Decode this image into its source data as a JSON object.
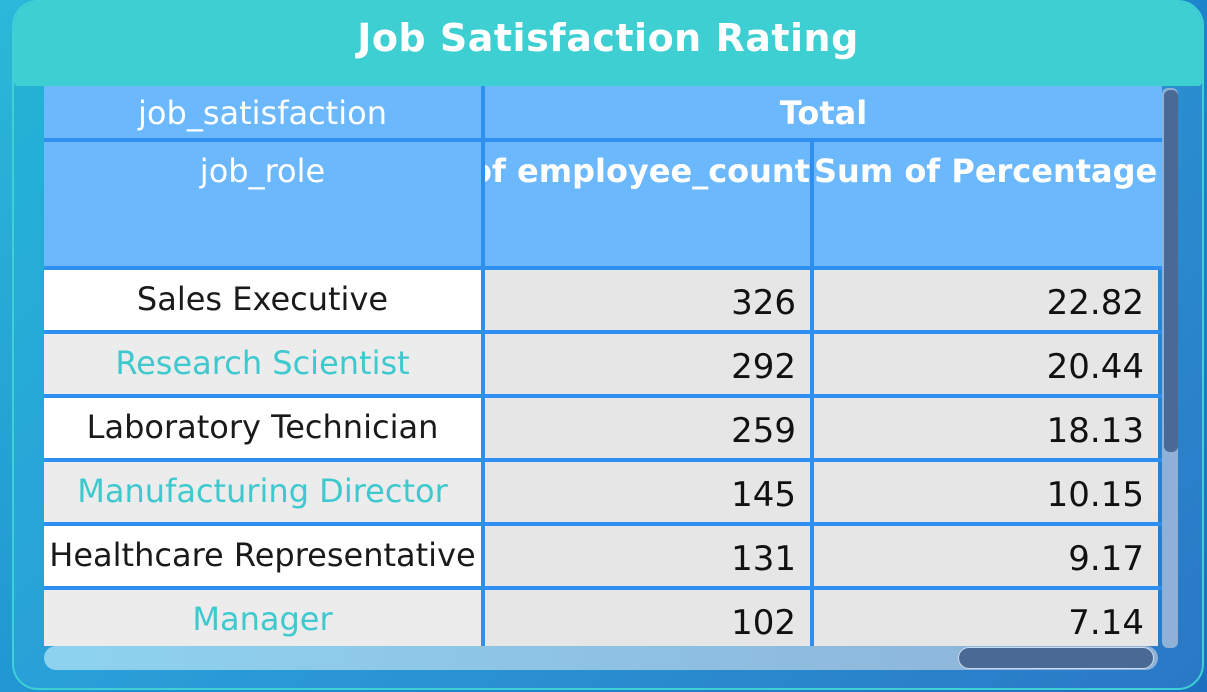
{
  "visual": {
    "title": "Job Satisfaction Rating"
  },
  "table": {
    "header_row1": {
      "row_field": "job_satisfaction",
      "column_group": "Total"
    },
    "header_row2": {
      "row_field": "job_role",
      "col1": "of employee_count",
      "col2": "Sum of Percentage"
    },
    "rows": [
      {
        "job_role": "Sales Executive",
        "employee_count": "326",
        "percentage": "22.82",
        "style": "light"
      },
      {
        "job_role": "Research Scientist",
        "employee_count": "292",
        "percentage": "20.44",
        "style": "teal"
      },
      {
        "job_role": "Laboratory Technician",
        "employee_count": "259",
        "percentage": "18.13",
        "style": "light"
      },
      {
        "job_role": "Manufacturing Director",
        "employee_count": "145",
        "percentage": "10.15",
        "style": "teal"
      },
      {
        "job_role": "Healthcare Representative",
        "employee_count": "131",
        "percentage": "9.17",
        "style": "light"
      },
      {
        "job_role": "Manager",
        "employee_count": "102",
        "percentage": "7.14",
        "style": "teal"
      }
    ]
  },
  "colors": {
    "header_bg": "#6bb8fd",
    "title_bar_bg": "#3ecfd3",
    "teal_text": "#3ec9cf",
    "grid_line": "#2f8ff0"
  }
}
